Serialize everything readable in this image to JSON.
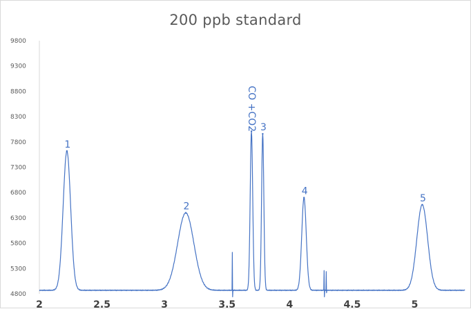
{
  "chart_data": {
    "type": "line",
    "title": "200 ppb standard",
    "xlabel": "",
    "ylabel": "",
    "xlim": [
      2,
      5.4
    ],
    "ylim": [
      4800,
      9800
    ],
    "grid": false,
    "legend": "none",
    "x_ticks": [
      "2",
      "2.5",
      "3",
      "3.5",
      "4",
      "4.5",
      "5"
    ],
    "y_ticks": [
      "4800",
      "5300",
      "5800",
      "6300",
      "6800",
      "7300",
      "7800",
      "8300",
      "8800",
      "9300",
      "9800"
    ],
    "series_color": "#4472c4",
    "baseline": 4870,
    "peaks": [
      {
        "label": "1",
        "x": 2.22,
        "y": 7620,
        "width": 0.03
      },
      {
        "label": "2",
        "x": 3.17,
        "y": 6400,
        "width": 0.065
      },
      {
        "label": "CO +CO2",
        "x": 3.695,
        "y": 8010,
        "width": 0.01
      },
      {
        "label": "3",
        "x": 3.785,
        "y": 7960,
        "width": 0.009
      },
      {
        "label": "4",
        "x": 4.115,
        "y": 6700,
        "width": 0.018
      },
      {
        "label": "5",
        "x": 5.06,
        "y": 6560,
        "width": 0.043
      }
    ],
    "spikes": [
      {
        "x": 3.542,
        "y": 5620,
        "dip": 4680
      },
      {
        "x": 4.275,
        "y": 5260,
        "dip": 4660
      },
      {
        "x": 4.292,
        "y": 5240,
        "dip": 4820
      }
    ]
  }
}
